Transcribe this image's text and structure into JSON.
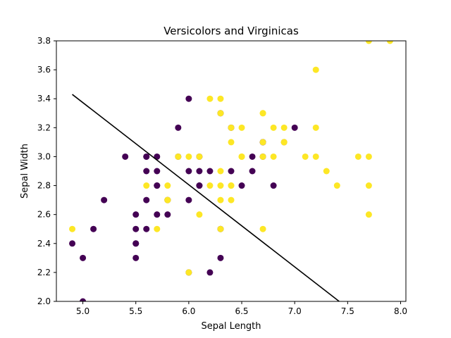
{
  "chart_data": {
    "type": "scatter",
    "title": "Versicolors and Virginicas",
    "xlabel": "Sepal Length",
    "ylabel": "Sepal Width",
    "xlim": [
      4.75,
      8.05
    ],
    "ylim": [
      2.0,
      3.8
    ],
    "grid": false,
    "xticks": [
      5.0,
      5.5,
      6.0,
      6.5,
      7.0,
      7.5,
      8.0
    ],
    "xtick_labels": [
      "5.0",
      "5.5",
      "6.0",
      "6.5",
      "7.0",
      "7.5",
      "8.0"
    ],
    "yticks": [
      2.0,
      2.2,
      2.4,
      2.6,
      2.8,
      3.0,
      3.2,
      3.4,
      3.6,
      3.8
    ],
    "ytick_labels": [
      "2.0",
      "2.2",
      "2.4",
      "2.6",
      "2.8",
      "3.0",
      "3.2",
      "3.4",
      "3.6",
      "3.8"
    ],
    "colors": {
      "versicolor": "#440154",
      "virginica": "#fde725",
      "line": "#000000"
    },
    "series": [
      {
        "color_key": "versicolor",
        "points": [
          [
            7.0,
            3.2
          ],
          [
            6.4,
            3.2
          ],
          [
            6.9,
            3.1
          ],
          [
            5.5,
            2.3
          ],
          [
            6.5,
            2.8
          ],
          [
            5.7,
            2.8
          ],
          [
            6.3,
            3.3
          ],
          [
            4.9,
            2.4
          ],
          [
            6.6,
            2.9
          ],
          [
            5.2,
            2.7
          ],
          [
            5.0,
            2.0
          ],
          [
            5.9,
            3.0
          ],
          [
            6.0,
            2.2
          ],
          [
            6.1,
            2.9
          ],
          [
            5.6,
            2.9
          ],
          [
            6.7,
            3.1
          ],
          [
            5.6,
            3.0
          ],
          [
            5.8,
            2.7
          ],
          [
            6.2,
            2.2
          ],
          [
            5.6,
            2.5
          ],
          [
            5.9,
            3.2
          ],
          [
            6.1,
            2.8
          ],
          [
            6.3,
            2.5
          ],
          [
            6.1,
            2.8
          ],
          [
            6.4,
            2.9
          ],
          [
            6.6,
            3.0
          ],
          [
            6.8,
            2.8
          ],
          [
            6.7,
            3.0
          ],
          [
            6.0,
            2.9
          ],
          [
            5.7,
            2.6
          ],
          [
            5.5,
            2.4
          ],
          [
            5.5,
            2.4
          ],
          [
            5.8,
            2.7
          ],
          [
            6.0,
            2.7
          ],
          [
            5.4,
            3.0
          ],
          [
            6.0,
            3.4
          ],
          [
            6.7,
            3.1
          ],
          [
            6.3,
            2.3
          ],
          [
            5.6,
            3.0
          ],
          [
            5.5,
            2.5
          ],
          [
            5.5,
            2.6
          ],
          [
            6.1,
            3.0
          ],
          [
            5.8,
            2.6
          ],
          [
            5.0,
            2.3
          ],
          [
            5.6,
            2.7
          ],
          [
            5.7,
            3.0
          ],
          [
            5.7,
            2.9
          ],
          [
            6.2,
            2.9
          ],
          [
            5.1,
            2.5
          ],
          [
            5.7,
            2.8
          ]
        ]
      },
      {
        "color_key": "virginica",
        "points": [
          [
            6.3,
            3.3
          ],
          [
            5.8,
            2.7
          ],
          [
            7.1,
            3.0
          ],
          [
            6.3,
            2.9
          ],
          [
            6.5,
            3.0
          ],
          [
            7.6,
            3.0
          ],
          [
            4.9,
            2.5
          ],
          [
            7.3,
            2.9
          ],
          [
            6.7,
            2.5
          ],
          [
            7.2,
            3.6
          ],
          [
            6.5,
            3.2
          ],
          [
            6.4,
            2.7
          ],
          [
            6.8,
            3.0
          ],
          [
            5.7,
            2.5
          ],
          [
            5.8,
            2.8
          ],
          [
            6.4,
            3.2
          ],
          [
            6.5,
            3.0
          ],
          [
            7.7,
            3.8
          ],
          [
            7.7,
            2.6
          ],
          [
            6.0,
            2.2
          ],
          [
            6.9,
            3.2
          ],
          [
            5.6,
            2.8
          ],
          [
            7.7,
            2.8
          ],
          [
            6.3,
            2.7
          ],
          [
            6.7,
            3.3
          ],
          [
            7.2,
            3.2
          ],
          [
            6.2,
            2.8
          ],
          [
            6.1,
            3.0
          ],
          [
            6.4,
            2.8
          ],
          [
            7.2,
            3.0
          ],
          [
            7.4,
            2.8
          ],
          [
            7.9,
            3.8
          ],
          [
            6.4,
            2.8
          ],
          [
            6.3,
            2.8
          ],
          [
            6.1,
            2.6
          ],
          [
            7.7,
            3.0
          ],
          [
            6.3,
            3.4
          ],
          [
            6.4,
            3.1
          ],
          [
            6.0,
            3.0
          ],
          [
            6.9,
            3.1
          ],
          [
            6.7,
            3.1
          ],
          [
            6.9,
            3.1
          ],
          [
            5.8,
            2.7
          ],
          [
            6.8,
            3.2
          ],
          [
            6.7,
            3.3
          ],
          [
            6.7,
            3.0
          ],
          [
            6.3,
            2.5
          ],
          [
            6.5,
            3.0
          ],
          [
            6.2,
            3.4
          ],
          [
            5.9,
            3.0
          ]
        ]
      }
    ],
    "line": {
      "x": [
        4.9,
        7.42
      ],
      "y": [
        3.43,
        2.0
      ]
    }
  }
}
